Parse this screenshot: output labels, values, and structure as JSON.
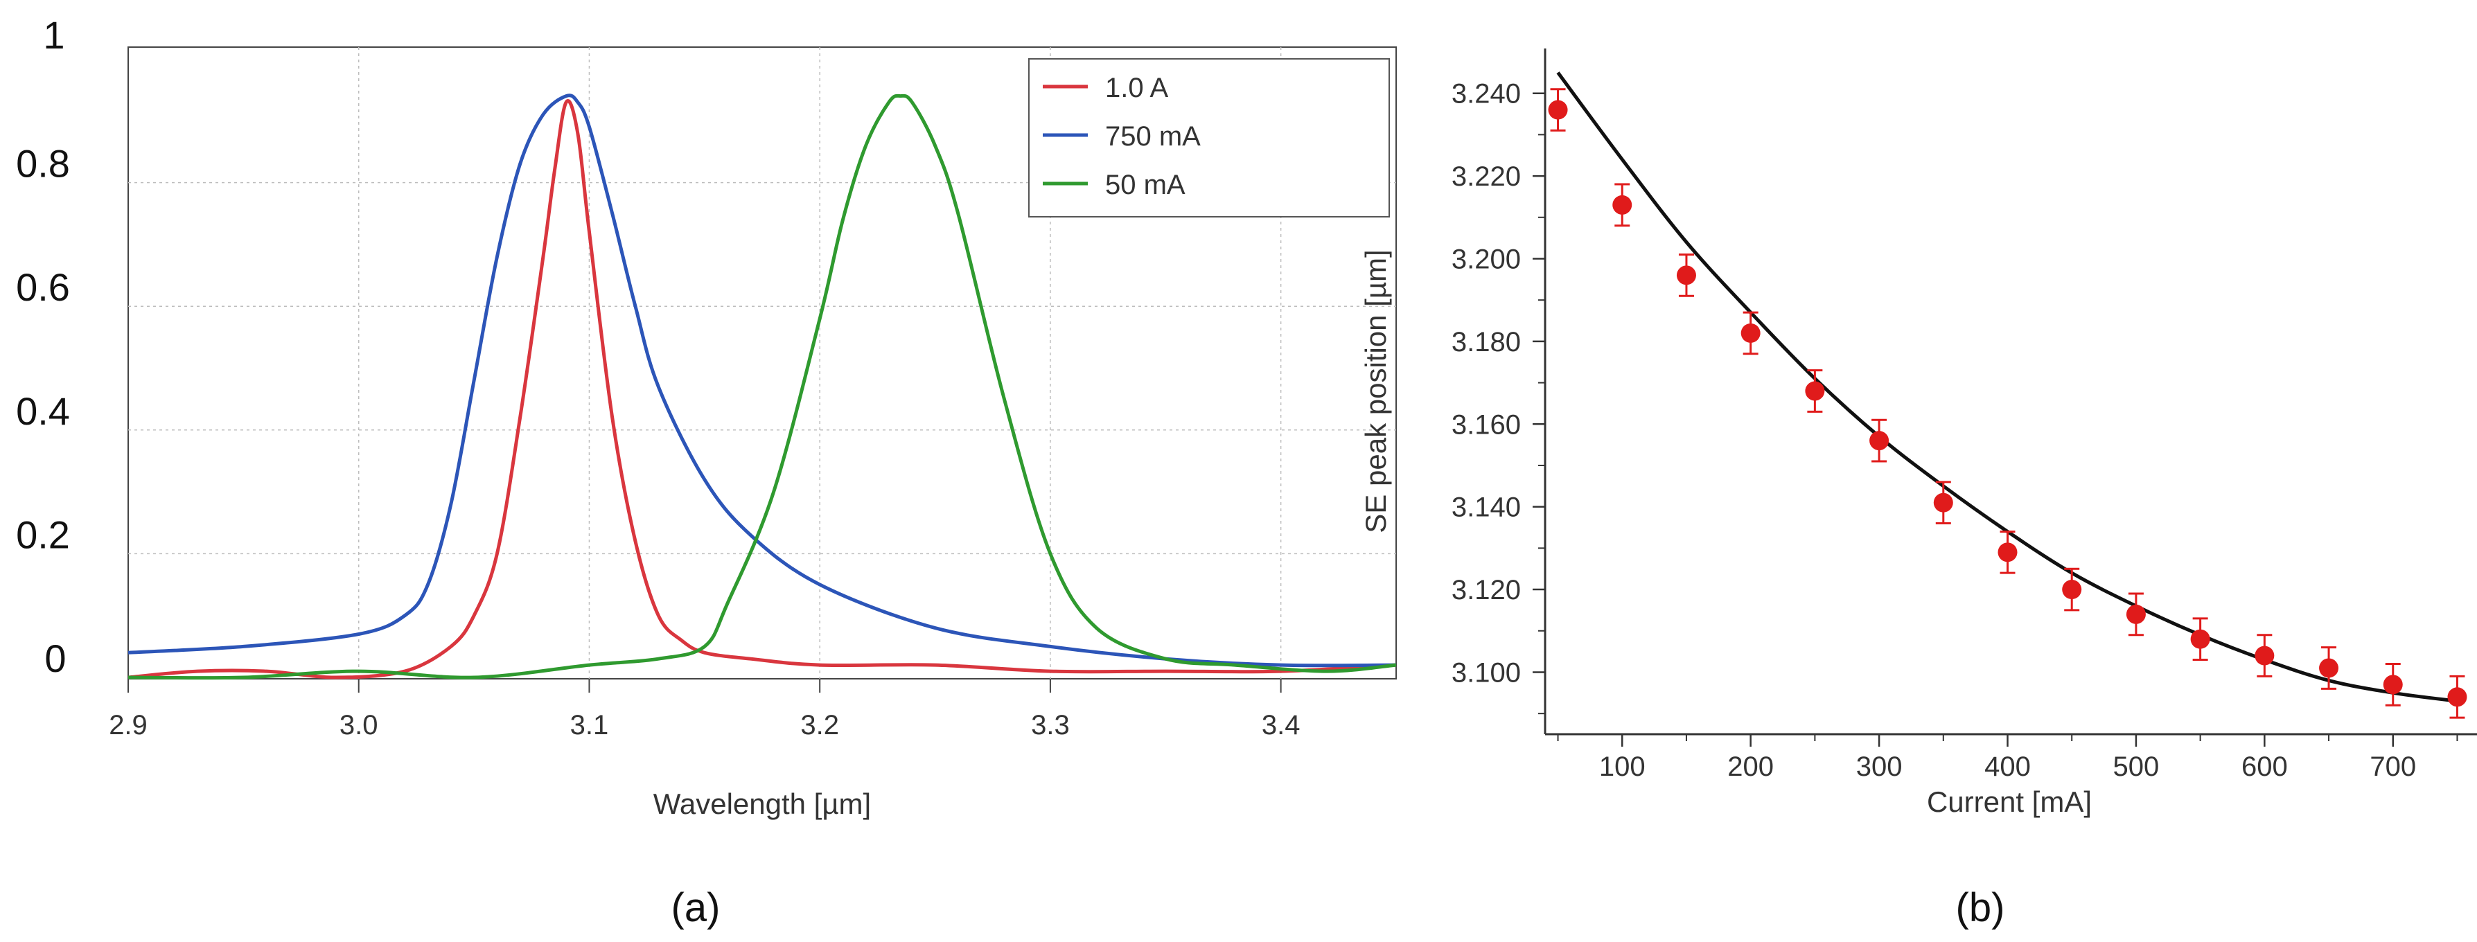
{
  "chart_data": [
    {
      "panel": "a",
      "type": "line",
      "caption": "(a)",
      "xlabel": "Wavelength [µm]",
      "ylabel": "",
      "xlim": [
        2.9,
        3.45
      ],
      "ylim": [
        0,
        1
      ],
      "xticks": [
        2.9,
        3.0,
        3.1,
        3.2,
        3.3,
        3.4
      ],
      "xtick_labels": [
        "2.9",
        "3.0",
        "3.1",
        "3.2",
        "3.3",
        "3.4"
      ],
      "yticks": [
        0,
        0.2,
        0.4,
        0.6,
        0.8,
        1
      ],
      "ytick_labels": [
        "0",
        "0.2",
        "0.4",
        "0.6",
        "0.8",
        "1"
      ],
      "grid": true,
      "legend_position": "top-right",
      "series": [
        {
          "name": "1.0 A",
          "color": "#d9363e",
          "x": [
            2.9,
            2.93,
            2.96,
            2.99,
            3.02,
            3.04,
            3.05,
            3.06,
            3.07,
            3.08,
            3.085,
            3.09,
            3.095,
            3.1,
            3.11,
            3.12,
            3.13,
            3.14,
            3.15,
            3.17,
            3.2,
            3.25,
            3.3,
            3.35,
            3.4,
            3.45
          ],
          "y": [
            0.0,
            0.01,
            0.01,
            0.0,
            0.01,
            0.05,
            0.1,
            0.2,
            0.42,
            0.68,
            0.82,
            0.93,
            0.88,
            0.72,
            0.42,
            0.22,
            0.1,
            0.06,
            0.04,
            0.03,
            0.02,
            0.02,
            0.01,
            0.01,
            0.01,
            0.02
          ]
        },
        {
          "name": "750 mA",
          "color": "#2c55b8",
          "x": [
            2.9,
            2.95,
            3.0,
            3.02,
            3.03,
            3.04,
            3.05,
            3.06,
            3.07,
            3.08,
            3.09,
            3.095,
            3.1,
            3.11,
            3.12,
            3.13,
            3.15,
            3.17,
            3.2,
            3.25,
            3.3,
            3.35,
            3.4,
            3.45
          ],
          "y": [
            0.04,
            0.05,
            0.07,
            0.1,
            0.15,
            0.28,
            0.48,
            0.68,
            0.83,
            0.91,
            0.94,
            0.93,
            0.89,
            0.75,
            0.6,
            0.47,
            0.32,
            0.23,
            0.15,
            0.08,
            0.05,
            0.03,
            0.02,
            0.02
          ]
        },
        {
          "name": "50 mA",
          "color": "#2f9a2f",
          "x": [
            2.9,
            2.95,
            3.0,
            3.05,
            3.1,
            3.13,
            3.15,
            3.16,
            3.18,
            3.2,
            3.21,
            3.22,
            3.23,
            3.235,
            3.24,
            3.25,
            3.26,
            3.28,
            3.3,
            3.32,
            3.35,
            3.38,
            3.42,
            3.45
          ],
          "y": [
            0.0,
            0.0,
            0.01,
            0.0,
            0.02,
            0.03,
            0.05,
            0.12,
            0.3,
            0.58,
            0.74,
            0.86,
            0.93,
            0.94,
            0.93,
            0.86,
            0.75,
            0.45,
            0.2,
            0.08,
            0.03,
            0.02,
            0.01,
            0.02
          ]
        }
      ]
    },
    {
      "panel": "b",
      "type": "scatter",
      "caption": "(b)",
      "xlabel": "Current [mA]",
      "ylabel": "SE peak position [µm]",
      "xlim": [
        40,
        760
      ],
      "ylim": [
        3.085,
        3.25
      ],
      "xticks": [
        100,
        200,
        300,
        400,
        500,
        600,
        700
      ],
      "xtick_labels": [
        "100",
        "200",
        "300",
        "400",
        "500",
        "600",
        "700"
      ],
      "yticks": [
        3.1,
        3.12,
        3.14,
        3.16,
        3.18,
        3.2,
        3.22,
        3.24
      ],
      "ytick_labels": [
        "3.100",
        "3.120",
        "3.140",
        "3.160",
        "3.180",
        "3.200",
        "3.220",
        "3.240"
      ],
      "grid": false,
      "points_color": "#e01b1b",
      "fit_color": "#111111",
      "x": [
        50,
        100,
        150,
        200,
        250,
        300,
        350,
        400,
        450,
        500,
        550,
        600,
        650,
        700,
        750
      ],
      "y": [
        3.236,
        3.213,
        3.196,
        3.182,
        3.168,
        3.156,
        3.141,
        3.129,
        3.12,
        3.114,
        3.108,
        3.104,
        3.101,
        3.097,
        3.094
      ],
      "error": 0.005,
      "fit": {
        "x": [
          50,
          100,
          150,
          200,
          250,
          300,
          350,
          400,
          450,
          500,
          550,
          600,
          650,
          700,
          750
        ],
        "y": [
          3.245,
          3.224,
          3.204,
          3.187,
          3.171,
          3.157,
          3.145,
          3.134,
          3.124,
          3.116,
          3.109,
          3.103,
          3.098,
          3.095,
          3.093
        ]
      }
    }
  ]
}
